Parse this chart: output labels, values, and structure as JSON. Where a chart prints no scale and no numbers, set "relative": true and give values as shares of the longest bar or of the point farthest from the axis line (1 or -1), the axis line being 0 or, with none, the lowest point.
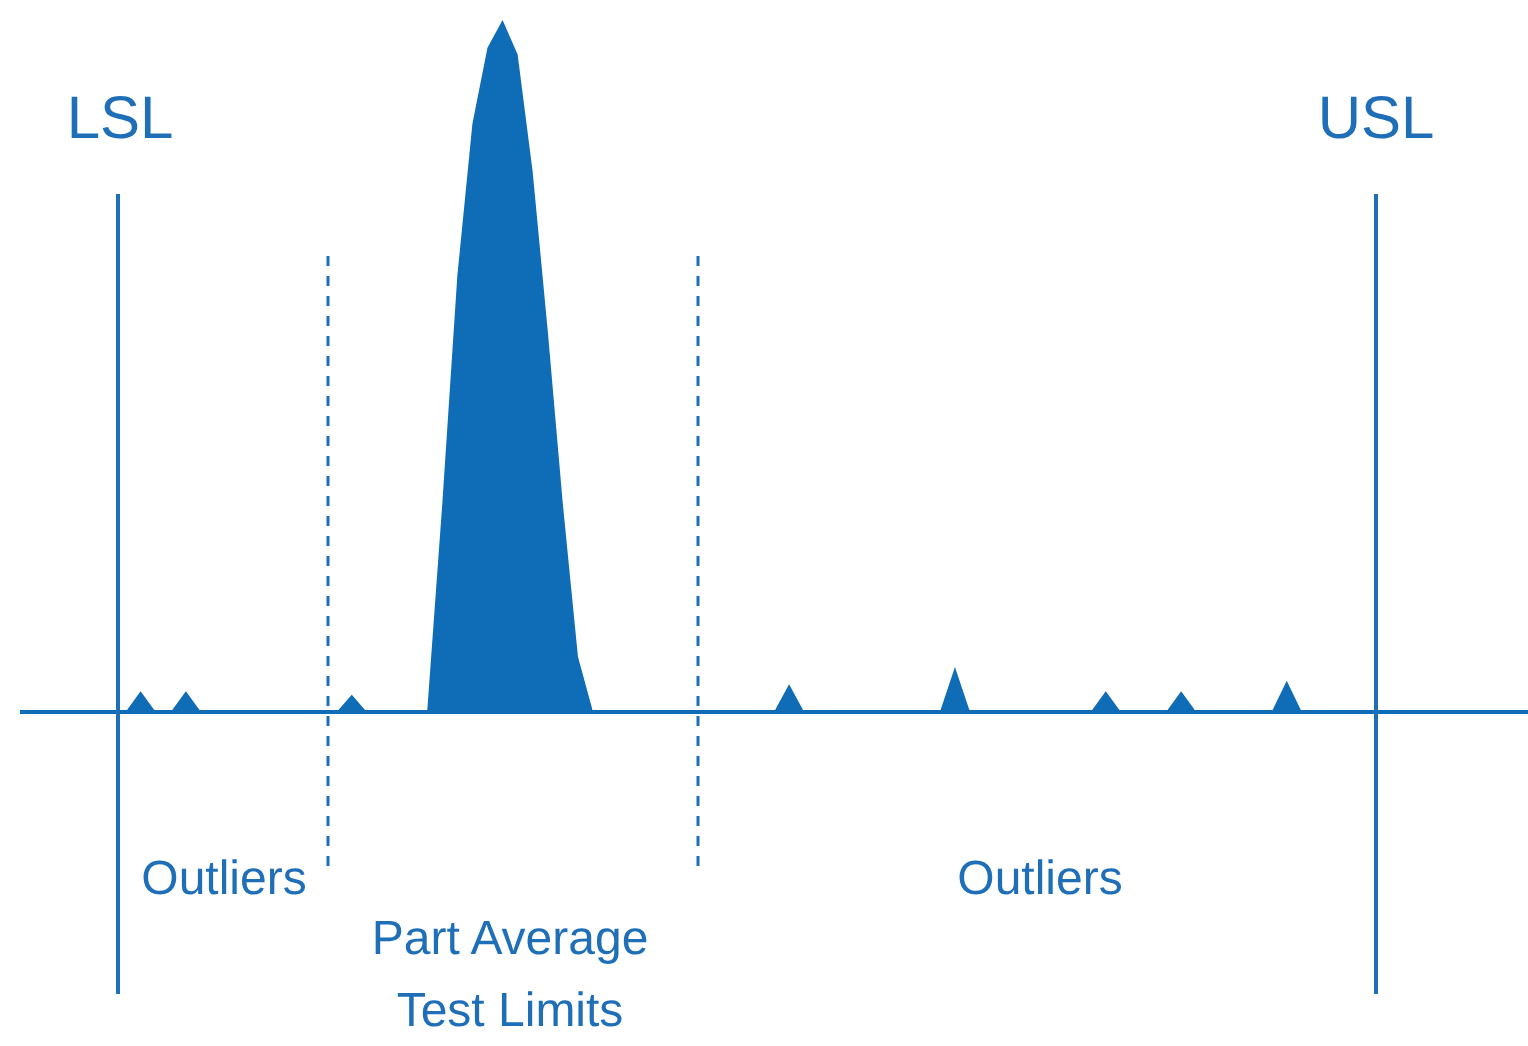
{
  "chart_data": {
    "type": "area",
    "relative": true,
    "grid": false,
    "categories": [
      null,
      null,
      null,
      null,
      null,
      null,
      null,
      null,
      null,
      null,
      null,
      null,
      null,
      null,
      null,
      null,
      null,
      null,
      null,
      null,
      null,
      null,
      null,
      null,
      null,
      null,
      null,
      null,
      null,
      null,
      null,
      null,
      null,
      null,
      null,
      null,
      null,
      null,
      null,
      null,
      null,
      null,
      null,
      null,
      null,
      null,
      null,
      null,
      null,
      null,
      null,
      null,
      null,
      null,
      null,
      null,
      null,
      null,
      null,
      null,
      null,
      null,
      null,
      null,
      null,
      null,
      null,
      null,
      null,
      null,
      null,
      null,
      null,
      null,
      null,
      null,
      null,
      null,
      null,
      null,
      null,
      null,
      null,
      null,
      null,
      null,
      null,
      null,
      null,
      null,
      null,
      null,
      null,
      null,
      null,
      null,
      null,
      null,
      null,
      null,
      null
    ],
    "series": [
      {
        "color": "#0f6cb6",
        "values": [
          0,
          0,
          0,
          0,
          0,
          0,
          0,
          0,
          0.03,
          0,
          0,
          0.03,
          0,
          0,
          0,
          0,
          0,
          0,
          0,
          0,
          0,
          0,
          0.025,
          0,
          0,
          0,
          0,
          0,
          0.3,
          0.63,
          0.85,
          0.96,
          1,
          0.95,
          0.78,
          0.55,
          0.3,
          0.08,
          0,
          0,
          0,
          0,
          0,
          0,
          0,
          0,
          0,
          0,
          0,
          0,
          0,
          0.04,
          0,
          0,
          0,
          0,
          0,
          0,
          0,
          0,
          0,
          0,
          0.065,
          0,
          0,
          0,
          0,
          0,
          0,
          0,
          0,
          0,
          0.03,
          0,
          0,
          0,
          0,
          0.03,
          0,
          0,
          0,
          0,
          0,
          0,
          0.045,
          0,
          0,
          0,
          0,
          0,
          0,
          0,
          0,
          0,
          0,
          0,
          0,
          0,
          0,
          0,
          0
        ]
      }
    ],
    "annotations": [
      "LSL",
      "USL",
      "Outliers",
      "Part Average\nTest Limits",
      "Outliers"
    ]
  }
}
